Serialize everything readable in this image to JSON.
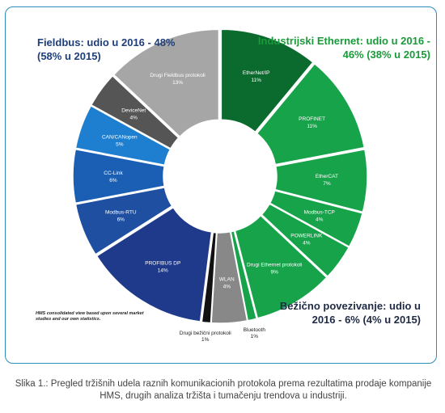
{
  "chart_data": {
    "type": "pie",
    "donut": true,
    "slices": [
      {
        "label": "EtherNet/IP",
        "value": 11,
        "value_label": "11%",
        "color": "#0b6b2e",
        "text_color": "#ffffff"
      },
      {
        "label": "PROFINET",
        "value": 11,
        "value_label": "11%",
        "color": "#16a34a",
        "text_color": "#ffffff"
      },
      {
        "label": "EtherCAT",
        "value": 7,
        "value_label": "7%",
        "color": "#16a34a",
        "text_color": "#ffffff"
      },
      {
        "label": "Modbus-TCP",
        "value": 4,
        "value_label": "4%",
        "color": "#16a34a",
        "text_color": "#ffffff"
      },
      {
        "label": "POWERLINK",
        "value": 4,
        "value_label": "4%",
        "color": "#16a34a",
        "text_color": "#ffffff"
      },
      {
        "label": "Drugi Ethernet protokoli",
        "value": 9,
        "value_label": "9%",
        "color": "#16a34a",
        "text_color": "#ffffff"
      },
      {
        "label": "Bluetooth",
        "value": 1,
        "value_label": "1%",
        "color": "#16a34a",
        "text_color": "#222222",
        "external": true
      },
      {
        "label": "WLAN",
        "value": 4,
        "value_label": "4%",
        "color": "#888888",
        "text_color": "#ffffff"
      },
      {
        "label": "Drugi bežični protokoli",
        "value": 1,
        "value_label": "1%",
        "color": "#111111",
        "text_color": "#222222",
        "external": true
      },
      {
        "label": "PROFIBUS DP",
        "value": 14,
        "value_label": "14%",
        "color": "#1f3a8a",
        "text_color": "#ffffff"
      },
      {
        "label": "Modbus-RTU",
        "value": 6,
        "value_label": "6%",
        "color": "#1e4fa0",
        "text_color": "#ffffff"
      },
      {
        "label": "CC-Link",
        "value": 6,
        "value_label": "6%",
        "color": "#1a5fb4",
        "text_color": "#ffffff"
      },
      {
        "label": "CAN/CANopen",
        "value": 5,
        "value_label": "5%",
        "color": "#1e7fd0",
        "text_color": "#ffffff"
      },
      {
        "label": "DeviceNet",
        "value": 4,
        "value_label": "4%",
        "color": "#555555",
        "text_color": "#ffffff"
      },
      {
        "label": "Drugi Fieldbus protokoli",
        "value": 13,
        "value_label": "13%",
        "color": "#a6a6a6",
        "text_color": "#ffffff"
      }
    ]
  },
  "groups": {
    "fieldbus": "Fieldbus: udio u 2016 - 48% (58% u 2015)",
    "ethernet": "Industrijski Ethernet: udio u 2016 - 46% (38% u 2015)",
    "wireless": "Bežično povezivanje: udio u 2016 - 6% (4% u 2015)"
  },
  "note": "HMS consolidated view based upon several market studies and our own statistics.",
  "caption": "Slika 1.: Pregled tržišnih udela raznih komunikacionih protokola prema rezultatima prodaje kompanije HMS, drugih analiza tržišta i tumačenju trendova u industriji."
}
